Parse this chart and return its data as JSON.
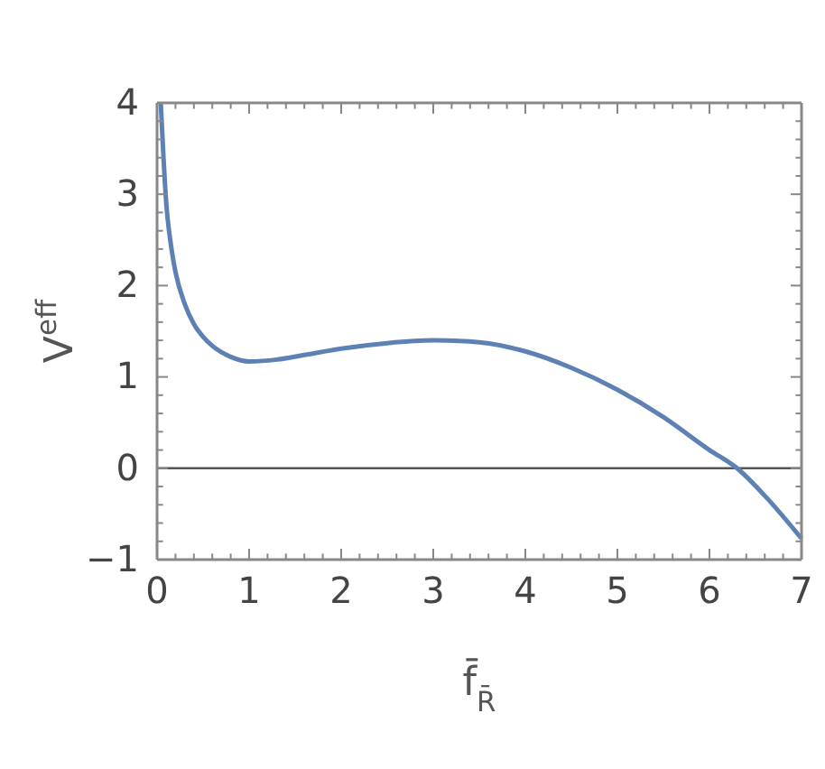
{
  "chart_data": {
    "type": "line",
    "xlabel": "f̄$_{R̄}$",
    "ylabel": "V$^{eff}$",
    "x": [
      0.04,
      0.07,
      0.1,
      0.15,
      0.2,
      0.3,
      0.4,
      0.5,
      0.6,
      0.8,
      1.0,
      1.3,
      1.6,
      2.0,
      2.5,
      3.0,
      3.5,
      4.0,
      4.5,
      5.0,
      5.5,
      6.0,
      6.3,
      6.6,
      7.0
    ],
    "series": [
      {
        "color": "#5e81b5",
        "values": [
          4.0,
          3.4,
          2.9,
          2.45,
          2.15,
          1.8,
          1.58,
          1.44,
          1.34,
          1.22,
          1.17,
          1.19,
          1.24,
          1.31,
          1.37,
          1.4,
          1.38,
          1.28,
          1.1,
          0.86,
          0.56,
          0.2,
          0.0,
          -0.3,
          -0.77
        ]
      }
    ],
    "xlim": [
      0,
      7
    ],
    "ylim": [
      -1,
      4
    ],
    "xticks": [
      0,
      {
        "value": 0.2,
        "label": null
      },
      {
        "value": 0.4,
        "label": null
      },
      {
        "value": 0.6,
        "label": null
      },
      {
        "value": 0.8,
        "label": null
      },
      1,
      {
        "value": 1.2,
        "label": null
      },
      {
        "value": 1.4,
        "label": null
      },
      {
        "value": 1.6,
        "label": null
      },
      {
        "value": 1.8,
        "label": null
      },
      2,
      {
        "value": 2.2,
        "label": null
      },
      {
        "value": 2.4,
        "label": null
      },
      {
        "value": 2.6,
        "label": null
      },
      {
        "value": 2.8,
        "label": null
      },
      3,
      {
        "value": 3.2,
        "label": null
      },
      {
        "value": 3.4,
        "label": null
      },
      {
        "value": 3.6,
        "label": null
      },
      {
        "value": 3.8,
        "label": null
      },
      4,
      {
        "value": 4.2,
        "label": null
      },
      {
        "value": 4.4,
        "label": null
      },
      {
        "value": 4.6,
        "label": null
      },
      {
        "value": 4.8,
        "label": null
      },
      5,
      {
        "value": 5.2,
        "label": null
      },
      {
        "value": 5.4,
        "label": null
      },
      {
        "value": 5.6,
        "label": null
      },
      {
        "value": 5.8,
        "label": null
      },
      6,
      {
        "value": 6.2,
        "label": null
      },
      {
        "value": 6.4,
        "label": null
      },
      {
        "value": 6.6,
        "label": null
      },
      {
        "value": 6.8,
        "label": null
      },
      7
    ],
    "yticks": [
      {
        "value": -1,
        "label": "−1"
      },
      {
        "value": -0.8,
        "label": null
      },
      {
        "value": -0.6,
        "label": null
      },
      {
        "value": -0.4,
        "label": null
      },
      {
        "value": -0.2,
        "label": null
      },
      0,
      {
        "value": 0.2,
        "label": null
      },
      {
        "value": 0.4,
        "label": null
      },
      {
        "value": 0.6,
        "label": null
      },
      {
        "value": 0.8,
        "label": null
      },
      1,
      {
        "value": 1.2,
        "label": null
      },
      {
        "value": 1.4,
        "label": null
      },
      {
        "value": 1.6,
        "label": null
      },
      {
        "value": 1.8,
        "label": null
      },
      2,
      {
        "value": 2.2,
        "label": null
      },
      {
        "value": 2.4,
        "label": null
      },
      {
        "value": 2.6,
        "label": null
      },
      {
        "value": 2.8,
        "label": null
      },
      3,
      {
        "value": 3.2,
        "label": null
      },
      {
        "value": 3.4,
        "label": null
      },
      {
        "value": 3.6,
        "label": null
      },
      {
        "value": 3.8,
        "label": null
      },
      4
    ],
    "ref_lines": [
      {
        "axis": "y",
        "value": 0,
        "color": "#555555"
      }
    ],
    "grid": false,
    "marker": "none",
    "line_style": "solid"
  }
}
